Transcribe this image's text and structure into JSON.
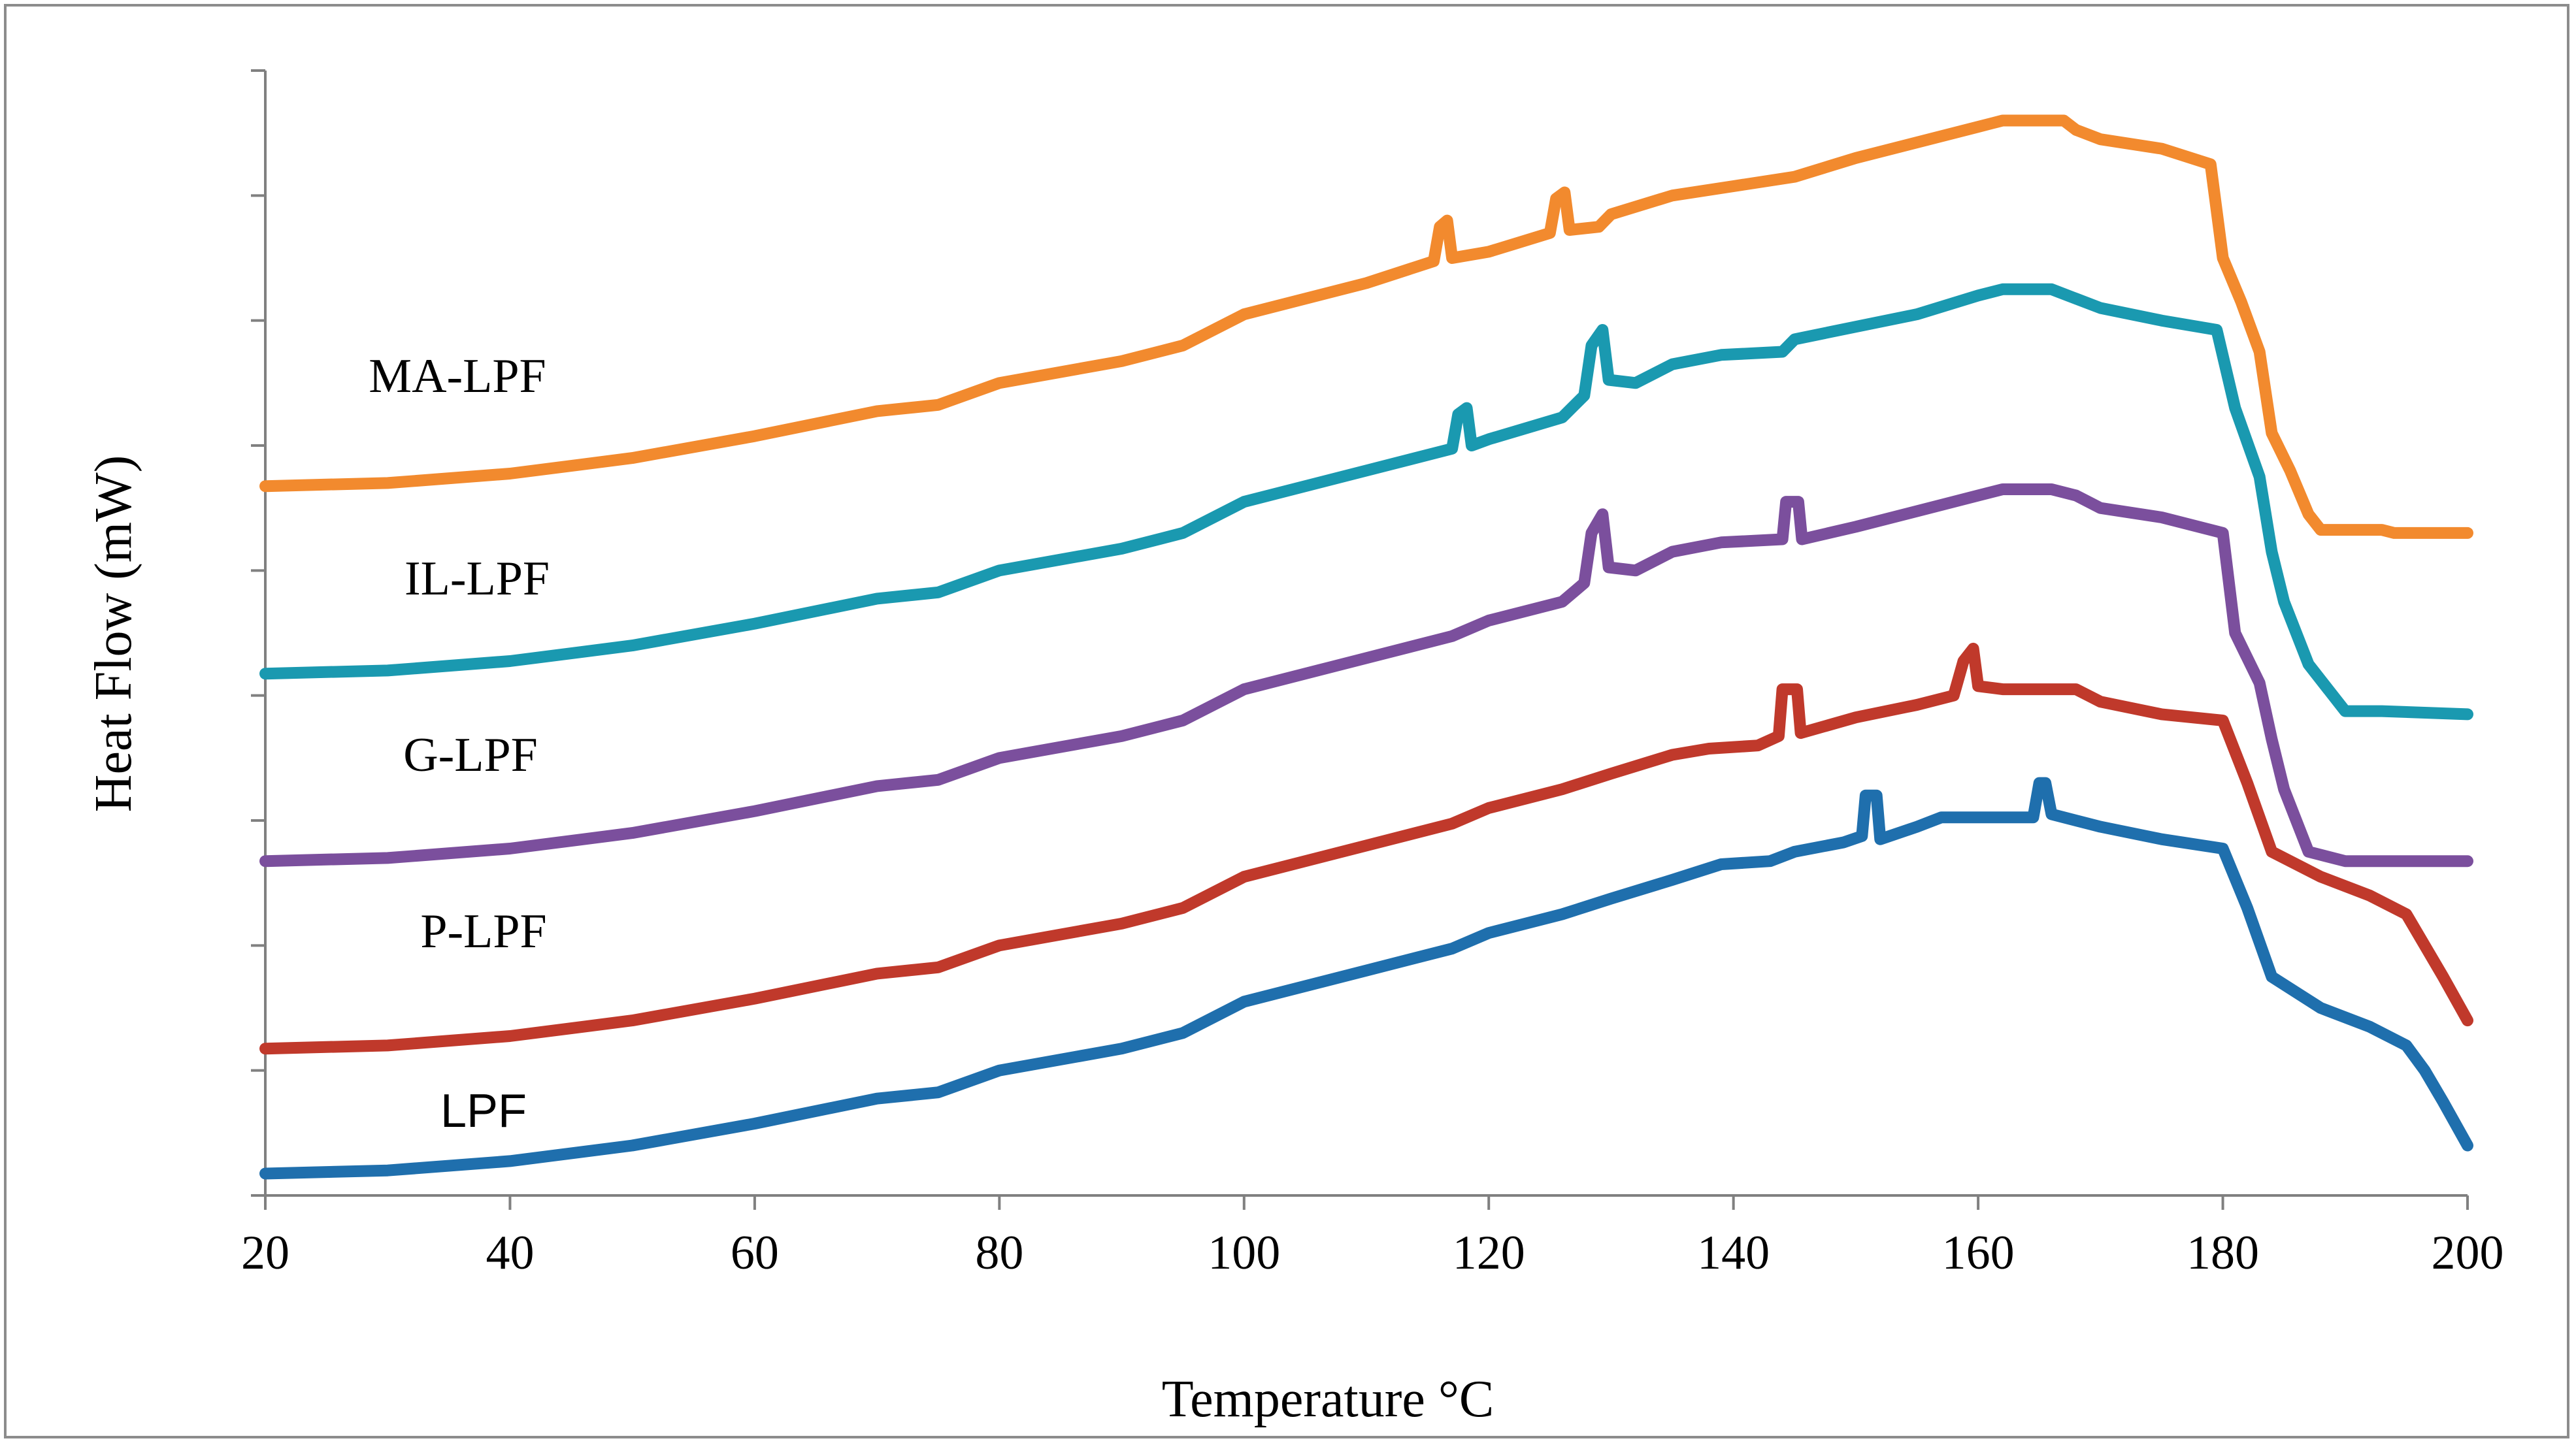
{
  "chart_data": {
    "type": "line",
    "title": "",
    "xlabel": "Temperature °C",
    "ylabel": "Heat Flow (mW)",
    "xlim": [
      20,
      200
    ],
    "ylim": [
      0,
      18
    ],
    "x_ticks": [
      20,
      40,
      60,
      80,
      100,
      120,
      140,
      160,
      180,
      200
    ],
    "y_ticks": [
      0,
      2,
      4,
      6,
      8,
      10,
      12,
      14,
      16,
      18
    ],
    "y_tick_labels_shown": false,
    "grid": false,
    "legend": "none",
    "series": [
      {
        "name": "LPF",
        "color": "#1f6fad",
        "points": [
          [
            20,
            0.35
          ],
          [
            30,
            0.4
          ],
          [
            40,
            0.55
          ],
          [
            50,
            0.8
          ],
          [
            60,
            1.15
          ],
          [
            70,
            1.55
          ],
          [
            75,
            1.65
          ],
          [
            80,
            2.0
          ],
          [
            90,
            2.35
          ],
          [
            95,
            2.6
          ],
          [
            100,
            3.1
          ],
          [
            110,
            3.6
          ],
          [
            117,
            3.95
          ],
          [
            120,
            4.2
          ],
          [
            126,
            4.5
          ],
          [
            130,
            4.75
          ],
          [
            135,
            5.05
          ],
          [
            139,
            5.3
          ],
          [
            143,
            5.35
          ],
          [
            145,
            5.5
          ],
          [
            149,
            5.65
          ],
          [
            150.5,
            5.75
          ],
          [
            150.8,
            6.4
          ],
          [
            151.7,
            6.4
          ],
          [
            152,
            5.7
          ],
          [
            155,
            5.9
          ],
          [
            157,
            6.05
          ],
          [
            164.5,
            6.05
          ],
          [
            165,
            6.6
          ],
          [
            165.5,
            6.6
          ],
          [
            166,
            6.1
          ],
          [
            170,
            5.9
          ],
          [
            175,
            5.7
          ],
          [
            180,
            5.55
          ],
          [
            182,
            4.6
          ],
          [
            184,
            3.5
          ],
          [
            188,
            3.0
          ],
          [
            192,
            2.7
          ],
          [
            195,
            2.4
          ],
          [
            196.5,
            2.0
          ],
          [
            198,
            1.5
          ],
          [
            200,
            0.8
          ]
        ]
      },
      {
        "name": "P-LPF",
        "color": "#c0392b",
        "points": [
          [
            20,
            2.35
          ],
          [
            30,
            2.4
          ],
          [
            40,
            2.55
          ],
          [
            50,
            2.8
          ],
          [
            60,
            3.15
          ],
          [
            70,
            3.55
          ],
          [
            75,
            3.65
          ],
          [
            80,
            4.0
          ],
          [
            90,
            4.35
          ],
          [
            95,
            4.6
          ],
          [
            100,
            5.1
          ],
          [
            110,
            5.6
          ],
          [
            117,
            5.95
          ],
          [
            120,
            6.2
          ],
          [
            126,
            6.5
          ],
          [
            130,
            6.75
          ],
          [
            135,
            7.05
          ],
          [
            138,
            7.15
          ],
          [
            142,
            7.2
          ],
          [
            143.7,
            7.35
          ],
          [
            144,
            8.1
          ],
          [
            145.2,
            8.1
          ],
          [
            145.5,
            7.4
          ],
          [
            150,
            7.65
          ],
          [
            155,
            7.85
          ],
          [
            158,
            8.0
          ],
          [
            158.8,
            8.55
          ],
          [
            159.6,
            8.75
          ],
          [
            160,
            8.15
          ],
          [
            162,
            8.1
          ],
          [
            168,
            8.1
          ],
          [
            170,
            7.9
          ],
          [
            175,
            7.7
          ],
          [
            180,
            7.6
          ],
          [
            182,
            6.6
          ],
          [
            184,
            5.5
          ],
          [
            188,
            5.1
          ],
          [
            192,
            4.8
          ],
          [
            195,
            4.5
          ],
          [
            196.5,
            4.0
          ],
          [
            198,
            3.5
          ],
          [
            200,
            2.8
          ]
        ]
      },
      {
        "name": "G-LPF",
        "color": "#7b4f9d",
        "points": [
          [
            20,
            5.35
          ],
          [
            30,
            5.4
          ],
          [
            40,
            5.55
          ],
          [
            50,
            5.8
          ],
          [
            60,
            6.15
          ],
          [
            70,
            6.55
          ],
          [
            75,
            6.65
          ],
          [
            80,
            7.0
          ],
          [
            90,
            7.35
          ],
          [
            95,
            7.6
          ],
          [
            100,
            8.1
          ],
          [
            110,
            8.6
          ],
          [
            117,
            8.95
          ],
          [
            120,
            9.2
          ],
          [
            126,
            9.5
          ],
          [
            127.8,
            9.8
          ],
          [
            128.4,
            10.6
          ],
          [
            129.3,
            10.9
          ],
          [
            129.8,
            10.05
          ],
          [
            132,
            10.0
          ],
          [
            135,
            10.3
          ],
          [
            139,
            10.45
          ],
          [
            144,
            10.5
          ],
          [
            144.3,
            11.1
          ],
          [
            145.3,
            11.1
          ],
          [
            145.6,
            10.5
          ],
          [
            150,
            10.7
          ],
          [
            155,
            10.95
          ],
          [
            160,
            11.2
          ],
          [
            162,
            11.3
          ],
          [
            166,
            11.3
          ],
          [
            168,
            11.2
          ],
          [
            170,
            11.0
          ],
          [
            175,
            10.85
          ],
          [
            180,
            10.6
          ],
          [
            181,
            9.0
          ],
          [
            183,
            8.2
          ],
          [
            184,
            7.3
          ],
          [
            185,
            6.5
          ],
          [
            187,
            5.5
          ],
          [
            190,
            5.35
          ],
          [
            200,
            5.35
          ]
        ]
      },
      {
        "name": "IL-LPF",
        "color": "#1a99b0",
        "points": [
          [
            20,
            8.35
          ],
          [
            30,
            8.4
          ],
          [
            40,
            8.55
          ],
          [
            50,
            8.8
          ],
          [
            60,
            9.15
          ],
          [
            70,
            9.55
          ],
          [
            75,
            9.65
          ],
          [
            80,
            10.0
          ],
          [
            90,
            10.35
          ],
          [
            95,
            10.6
          ],
          [
            100,
            11.1
          ],
          [
            110,
            11.6
          ],
          [
            117,
            11.95
          ],
          [
            117.5,
            12.5
          ],
          [
            118.2,
            12.6
          ],
          [
            118.6,
            12.0
          ],
          [
            120,
            12.1
          ],
          [
            126,
            12.45
          ],
          [
            127.8,
            12.8
          ],
          [
            128.4,
            13.6
          ],
          [
            129.3,
            13.85
          ],
          [
            129.8,
            13.05
          ],
          [
            132,
            13.0
          ],
          [
            135,
            13.3
          ],
          [
            139,
            13.45
          ],
          [
            144,
            13.5
          ],
          [
            145,
            13.7
          ],
          [
            150,
            13.9
          ],
          [
            155,
            14.1
          ],
          [
            160,
            14.4
          ],
          [
            162,
            14.5
          ],
          [
            166,
            14.5
          ],
          [
            168,
            14.35
          ],
          [
            170,
            14.2
          ],
          [
            175,
            14.0
          ],
          [
            179.5,
            13.85
          ],
          [
            181,
            12.6
          ],
          [
            183,
            11.5
          ],
          [
            184,
            10.3
          ],
          [
            185,
            9.5
          ],
          [
            187,
            8.5
          ],
          [
            190,
            7.75
          ],
          [
            193,
            7.75
          ],
          [
            200,
            7.7
          ]
        ]
      },
      {
        "name": "MA-LPF",
        "color": "#f28a2e",
        "points": [
          [
            20,
            11.35
          ],
          [
            30,
            11.4
          ],
          [
            40,
            11.55
          ],
          [
            50,
            11.8
          ],
          [
            60,
            12.15
          ],
          [
            70,
            12.55
          ],
          [
            75,
            12.65
          ],
          [
            80,
            13.0
          ],
          [
            90,
            13.35
          ],
          [
            95,
            13.6
          ],
          [
            100,
            14.1
          ],
          [
            110,
            14.6
          ],
          [
            115.5,
            14.95
          ],
          [
            116,
            15.5
          ],
          [
            116.6,
            15.6
          ],
          [
            117,
            15.0
          ],
          [
            120,
            15.1
          ],
          [
            125,
            15.4
          ],
          [
            125.5,
            15.95
          ],
          [
            126.2,
            16.05
          ],
          [
            126.6,
            15.45
          ],
          [
            129,
            15.5
          ],
          [
            130,
            15.7
          ],
          [
            135,
            16.0
          ],
          [
            140,
            16.15
          ],
          [
            145,
            16.3
          ],
          [
            150,
            16.6
          ],
          [
            155,
            16.85
          ],
          [
            160,
            17.1
          ],
          [
            162,
            17.2
          ],
          [
            167,
            17.2
          ],
          [
            168,
            17.05
          ],
          [
            170,
            16.9
          ],
          [
            175,
            16.75
          ],
          [
            179,
            16.5
          ],
          [
            180,
            15.0
          ],
          [
            181.5,
            14.3
          ],
          [
            183,
            13.5
          ],
          [
            184,
            12.2
          ],
          [
            185.5,
            11.6
          ],
          [
            187,
            10.9
          ],
          [
            188,
            10.65
          ],
          [
            193,
            10.65
          ],
          [
            194,
            10.6
          ],
          [
            200,
            10.6
          ]
        ]
      }
    ],
    "series_labels": [
      {
        "text": "MA-LPF",
        "series": "MA-LPF"
      },
      {
        "text": "IL-LPF",
        "series": "IL-LPF"
      },
      {
        "text": "G-LPF",
        "series": "G-LPF"
      },
      {
        "text": "P-LPF",
        "series": "P-LPF"
      },
      {
        "text": "LPF",
        "series": "LPF"
      }
    ]
  }
}
